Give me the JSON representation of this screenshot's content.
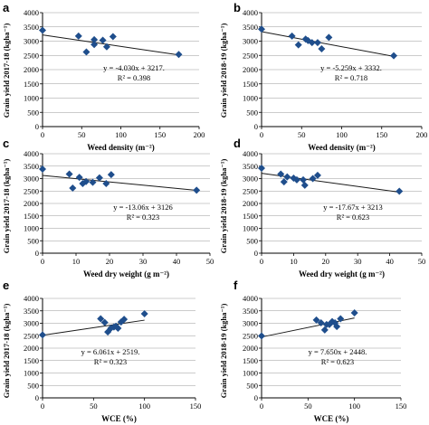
{
  "chart_data": [
    {
      "panel": "a",
      "type": "scatter",
      "xlabel": "Weed density (m⁻²)",
      "ylabel": "Grain yield 2017-18 (kgha⁻¹)",
      "xlim": [
        0,
        200
      ],
      "ylim": [
        0,
        4000
      ],
      "xticks": [
        0,
        50,
        100,
        150,
        200
      ],
      "yticks": [
        0,
        500,
        1000,
        1500,
        2000,
        2500,
        3000,
        3500,
        4000
      ],
      "x": [
        0,
        46,
        56,
        66,
        66,
        77,
        82,
        90,
        174
      ],
      "y": [
        3380,
        3180,
        2620,
        3050,
        2880,
        3030,
        2800,
        3160,
        2530
      ],
      "equation": "y = -4.030x + 3217.",
      "r2": "R² = 0.398",
      "trend": {
        "slope": -4.03,
        "intercept": 3217,
        "x": [
          0,
          174
        ]
      }
    },
    {
      "panel": "b",
      "type": "scatter",
      "xlabel": "Weed density (m⁻²)",
      "ylabel": "Grain yield 2018-19 (kgha⁻¹)",
      "xlim": [
        0,
        200
      ],
      "ylim": [
        0,
        4000
      ],
      "xticks": [
        0,
        50,
        100,
        150,
        200
      ],
      "yticks": [
        0,
        500,
        1000,
        1500,
        2000,
        2500,
        3000,
        3500,
        4000
      ],
      "x": [
        0,
        38,
        46,
        55,
        58,
        63,
        70,
        75,
        84,
        165
      ],
      "y": [
        3420,
        3180,
        2870,
        3070,
        3020,
        2950,
        2950,
        2730,
        3130,
        2490
      ],
      "equation": "y = -5.259x + 3332.",
      "r2": "R² = 0.718",
      "trend": {
        "slope": -5.259,
        "intercept": 3332,
        "x": [
          0,
          165
        ]
      }
    },
    {
      "panel": "c",
      "type": "scatter",
      "xlabel": "Weed dry weight (g m⁻²)",
      "ylabel": "Grain yield 2017-18 (kgha⁻¹)",
      "xlim": [
        0,
        50
      ],
      "ylim": [
        0,
        4000
      ],
      "xticks": [
        0,
        10,
        20,
        30,
        40,
        50
      ],
      "yticks": [
        0,
        500,
        1000,
        1500,
        2000,
        2500,
        3000,
        3500,
        4000
      ],
      "x": [
        0,
        8,
        9,
        11,
        12,
        13,
        15,
        17,
        19,
        20.5,
        46
      ],
      "y": [
        3380,
        3180,
        2620,
        3050,
        2800,
        2880,
        2850,
        3030,
        2800,
        3160,
        2530
      ],
      "equation": "y = -13.06x + 3126",
      "r2": "R² = 0.323",
      "trend": {
        "slope": -13.06,
        "intercept": 3126,
        "x": [
          0,
          46
        ]
      }
    },
    {
      "panel": "d",
      "type": "scatter",
      "xlabel": "Weed dry weight (g m⁻²)",
      "ylabel": "Grain yield 2018-19 (kgha⁻¹)",
      "xlim": [
        0,
        50
      ],
      "ylim": [
        0,
        4000
      ],
      "xticks": [
        0,
        10,
        20,
        30,
        40,
        50
      ],
      "yticks": [
        0,
        500,
        1000,
        1500,
        2000,
        2500,
        3000,
        3500,
        4000
      ],
      "x": [
        0,
        6,
        7,
        8,
        10,
        11,
        13,
        13.5,
        16,
        17.5,
        43
      ],
      "y": [
        3420,
        3180,
        2870,
        3070,
        3020,
        2950,
        2950,
        2730,
        3000,
        3130,
        2490
      ],
      "equation": "y = -17.67x + 3213",
      "r2": "R² = 0.623",
      "trend": {
        "slope": -17.67,
        "intercept": 3213,
        "x": [
          0,
          43
        ]
      }
    },
    {
      "panel": "e",
      "type": "scatter",
      "xlabel": "WCE (%)",
      "ylabel": "Grain yield 2017-18 (kgha⁻¹)",
      "xlim": [
        0,
        150
      ],
      "ylim": [
        0,
        4000
      ],
      "xticks": [
        0,
        50,
        100,
        150
      ],
      "yticks": [
        0,
        500,
        1000,
        1500,
        2000,
        2500,
        3000,
        3500,
        4000
      ],
      "x": [
        0,
        57,
        61,
        64,
        67,
        70,
        72,
        74,
        77,
        80,
        100
      ],
      "y": [
        2530,
        3180,
        3030,
        2650,
        2800,
        2850,
        2880,
        2800,
        3050,
        3160,
        3380
      ],
      "equation": "y = 6.061x + 2519.",
      "r2": "R² = 0.323",
      "trend": {
        "slope": 6.061,
        "intercept": 2519,
        "x": [
          0,
          100
        ]
      }
    },
    {
      "panel": "f",
      "type": "scatter",
      "xlabel": "WCE (%)",
      "ylabel": "Grain yield 2018-19 (kgha⁻¹)",
      "xlim": [
        0,
        150
      ],
      "ylim": [
        0,
        4000
      ],
      "xticks": [
        0,
        50,
        100,
        150
      ],
      "yticks": [
        0,
        500,
        1000,
        1500,
        2000,
        2500,
        3000,
        3500,
        4000
      ],
      "x": [
        0,
        59,
        64,
        68,
        70,
        73,
        76,
        79,
        81,
        85,
        100
      ],
      "y": [
        2490,
        3130,
        3020,
        2730,
        2950,
        2950,
        3070,
        3020,
        2870,
        3180,
        3420
      ],
      "equation": "y = 7.650x + 2448.",
      "r2": "R² = 0.623",
      "trend": {
        "slope": 7.65,
        "intercept": 2448,
        "x": [
          0,
          100
        ]
      }
    }
  ],
  "style": {
    "marker_color": "#1f4e8c",
    "line_color": "#1a1a1a",
    "axis_color": "#000000",
    "grid_color": "#9a9a9a"
  }
}
